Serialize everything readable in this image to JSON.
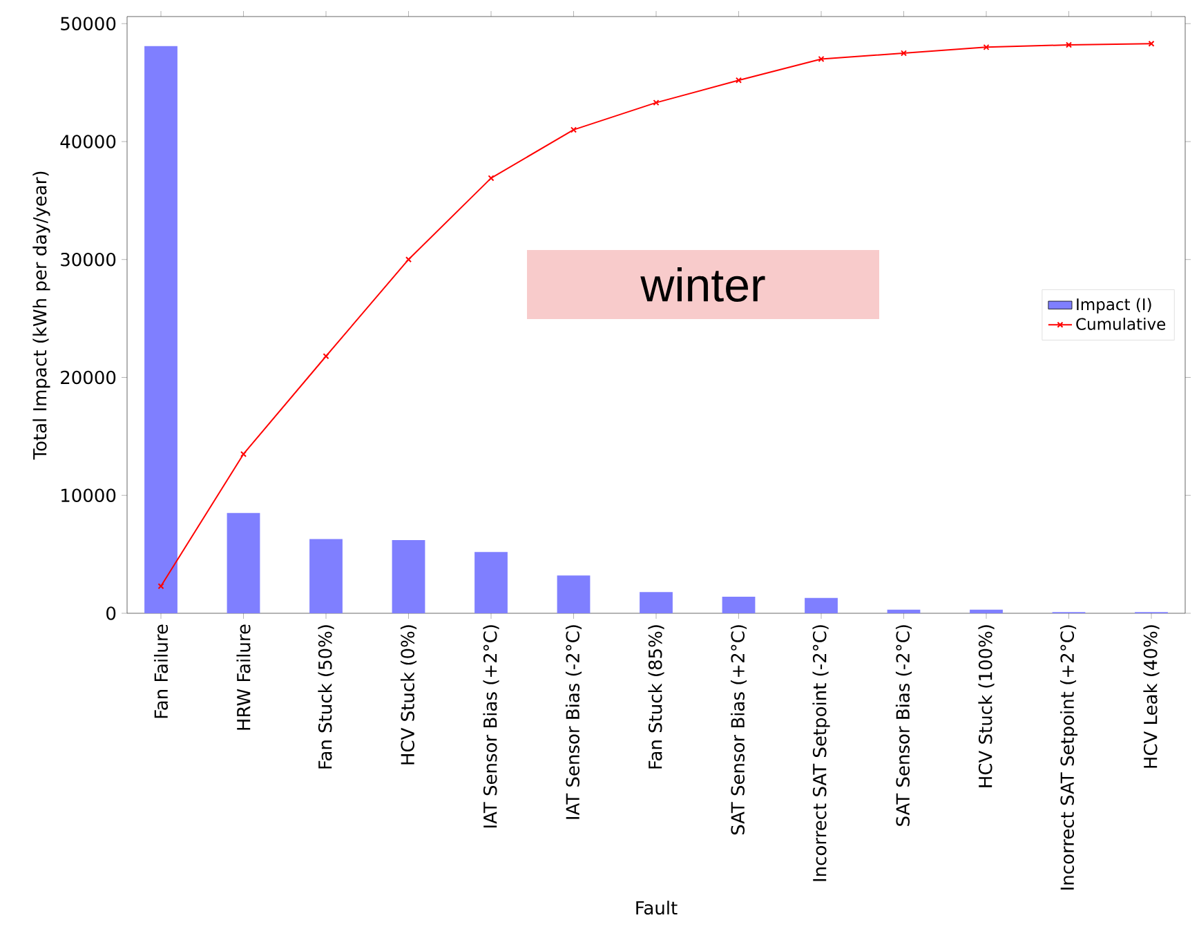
{
  "chart_data": {
    "type": "bar",
    "xlabel": "Fault",
    "ylabel": "Total Impact (kWh per day/year)",
    "annotations": [
      "winter"
    ],
    "categories": [
      "Fan Failure",
      "HRW Failure",
      "Fan Stuck (50%)",
      "HCV Stuck (0%)",
      "IAT Sensor Bias (+2°C)",
      "IAT Sensor Bias (-2°C)",
      "Fan Stuck (85%)",
      "SAT Sensor Bias (+2°C)",
      "Incorrect SAT Setpoint (-2°C)",
      "SAT Sensor Bias (-2°C)",
      "HCV Stuck (100%)",
      "Incorrect SAT Setpoint (+2°C)",
      "HCV Leak (40%)"
    ],
    "series": [
      {
        "name": "Impact (I)",
        "color": "#7f7fff",
        "values": [
          48100,
          8500,
          6300,
          6200,
          5200,
          3200,
          1800,
          1400,
          1300,
          300,
          300,
          100,
          100
        ]
      },
      {
        "name": "Cumulative",
        "type": "line",
        "color": "#ff0000",
        "marker": "cross",
        "values": [
          2300,
          13500,
          21800,
          30000,
          36900,
          41000,
          43300,
          45200,
          47000,
          47500,
          48000,
          48200,
          48300
        ]
      }
    ],
    "ylim": [
      0,
      50600
    ],
    "yticks": [
      0,
      10000,
      20000,
      30000,
      40000,
      50000
    ],
    "legend": "right"
  }
}
